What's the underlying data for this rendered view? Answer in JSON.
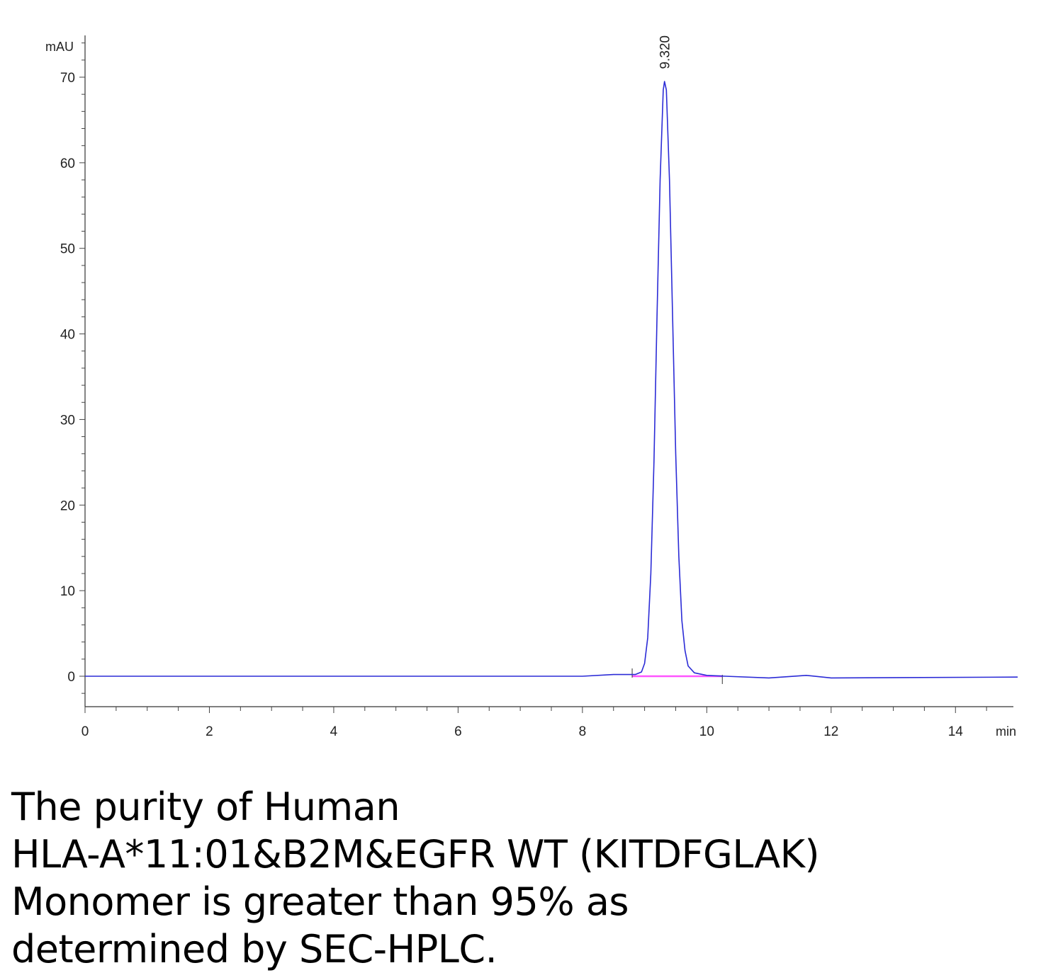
{
  "chart_data": {
    "type": "line",
    "y_unit_label": "mAU",
    "x_unit_label": "min",
    "xlim": [
      0,
      15
    ],
    "ylim": [
      -3.6,
      75.5
    ],
    "x_ticks": [
      0,
      2,
      4,
      6,
      8,
      10,
      12,
      14
    ],
    "y_ticks": [
      0,
      10,
      20,
      30,
      40,
      50,
      60,
      70
    ],
    "grid": false,
    "series": [
      {
        "color": "#2b2bd6",
        "x": [
          0,
          8.0,
          8.5,
          8.85,
          8.95,
          9.0,
          9.05,
          9.1,
          9.15,
          9.2,
          9.25,
          9.3,
          9.32,
          9.35,
          9.4,
          9.45,
          9.5,
          9.55,
          9.6,
          9.65,
          9.7,
          9.8,
          10.0,
          10.3,
          11.0,
          11.6,
          12.0,
          15.0
        ],
        "y": [
          0,
          0,
          0.2,
          0.2,
          0.5,
          1.5,
          4.5,
          12,
          25,
          42,
          58,
          68.5,
          69.5,
          68.5,
          58,
          42,
          26,
          14,
          6.5,
          3,
          1.2,
          0.4,
          0.1,
          0,
          -0.2,
          0.1,
          -0.2,
          -0.1
        ]
      }
    ],
    "baseline": {
      "color": "#ff55ff",
      "x": [
        8.8,
        10.25
      ],
      "y": [
        0,
        0
      ]
    },
    "peaks": [
      {
        "label": "9.320",
        "x": 9.32,
        "y": 69.5
      }
    ]
  },
  "caption": {
    "lines": [
      "The purity of Human",
      "HLA-A*11:01&B2M&EGFR WT (KITDFGLAK)",
      "Monomer is greater than 95% as",
      "determined by SEC-HPLC."
    ]
  }
}
